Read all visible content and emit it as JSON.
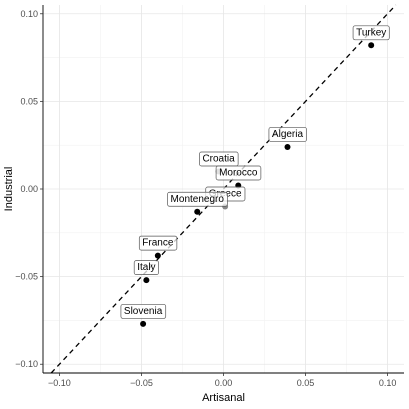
{
  "chart_data": {
    "type": "scatter",
    "xlabel": "Artisanal",
    "ylabel": "Industrial",
    "xlim": [
      -0.11,
      0.11
    ],
    "ylim": [
      -0.105,
      0.105
    ],
    "x_ticks": [
      -0.1,
      -0.05,
      0.0,
      0.05,
      0.1
    ],
    "x_tick_labels": [
      "−0.10",
      "−0.05",
      "0.00",
      "0.05",
      "0.10"
    ],
    "y_ticks": [
      -0.1,
      -0.05,
      0.0,
      0.05,
      0.1
    ],
    "y_tick_labels": [
      "−0.10",
      "−0.05",
      "0.00",
      "0.05",
      "0.10"
    ],
    "grid": true,
    "reference_line": {
      "slope": 1,
      "intercept": 0,
      "style": "dashed"
    },
    "points": [
      {
        "label": "Turkey",
        "x": 0.09,
        "y": 0.082,
        "color": "#000000"
      },
      {
        "label": "Algeria",
        "x": 0.039,
        "y": 0.024,
        "color": "#000000"
      },
      {
        "label": "Croatia",
        "x": -0.003,
        "y": 0.01,
        "color": "#888888"
      },
      {
        "label": "Morocco",
        "x": 0.009,
        "y": 0.002,
        "color": "#000000"
      },
      {
        "label": "Greece",
        "x": 0.001,
        "y": -0.01,
        "color": "#888888"
      },
      {
        "label": "Montenegro",
        "x": -0.016,
        "y": -0.013,
        "color": "#000000"
      },
      {
        "label": "France",
        "x": -0.04,
        "y": -0.038,
        "color": "#000000"
      },
      {
        "label": "Italy",
        "x": -0.047,
        "y": -0.052,
        "color": "#000000"
      },
      {
        "label": "Slovenia",
        "x": -0.049,
        "y": -0.077,
        "color": "#000000"
      }
    ]
  }
}
